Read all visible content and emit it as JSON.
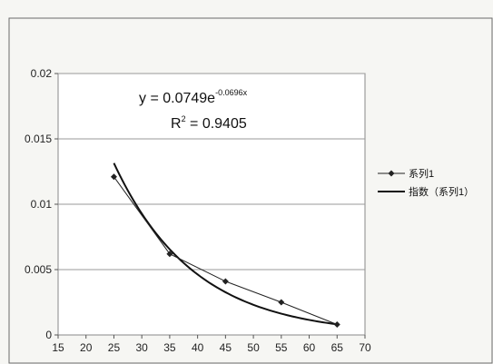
{
  "chart_data": {
    "type": "scatter",
    "title": "",
    "xlabel": "",
    "ylabel": "",
    "xlim": [
      15,
      70
    ],
    "ylim": [
      0,
      0.02
    ],
    "x_ticks": [
      "15",
      "20",
      "25",
      "30",
      "35",
      "40",
      "45",
      "50",
      "55",
      "60",
      "65",
      "70"
    ],
    "y_ticks": [
      "0",
      "0.005",
      "0.01",
      "0.015",
      "0.02"
    ],
    "grid": true,
    "legend_position": "right",
    "series": [
      {
        "name": "系列1",
        "x": [
          25,
          35,
          45,
          55,
          65
        ],
        "y": [
          0.0121,
          0.0062,
          0.0041,
          0.0025,
          0.0008
        ],
        "color": "#222222",
        "marker": "diamond"
      }
    ],
    "trendline": {
      "name": "指数（系列1）",
      "kind": "exponential",
      "a": 0.0749,
      "b": -0.0696,
      "x_range": [
        25,
        65
      ],
      "color": "#111111"
    },
    "equation": {
      "prefix": "y = 0.0749e",
      "exponent": "-0.0696x",
      "r2_prefix": "R",
      "r2_sup": "2",
      "r2_value": " = 0.9405"
    }
  }
}
